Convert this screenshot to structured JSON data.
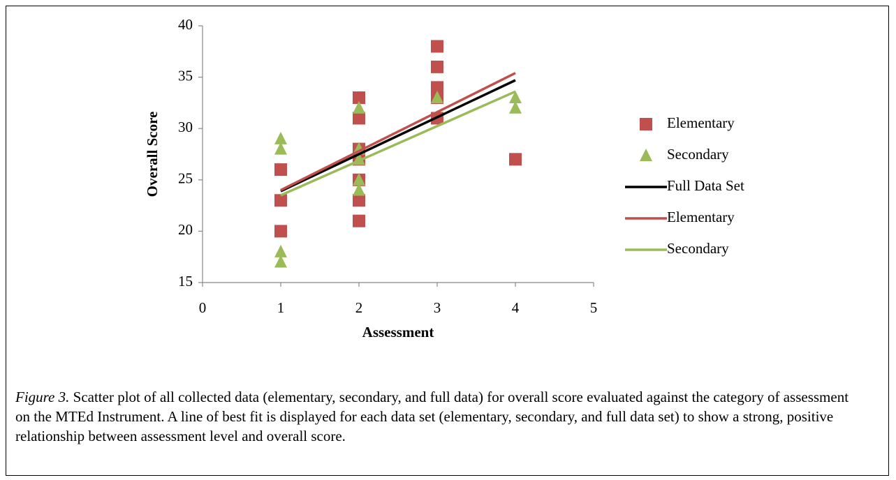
{
  "chart_data": {
    "type": "scatter",
    "x_label": "Assessment",
    "y_label": "Overall Score",
    "xlim": [
      0,
      5
    ],
    "xticks": [
      0,
      1,
      2,
      3,
      4,
      5
    ],
    "ylim": [
      15,
      40
    ],
    "yticks": [
      15,
      20,
      25,
      30,
      35,
      40
    ],
    "legend": "right",
    "series": [
      {
        "name": "Elementary",
        "type": "scatter",
        "marker": "square",
        "color": "#c0504d",
        "x": [
          1,
          1,
          1,
          2,
          2,
          2,
          2,
          2,
          2,
          2,
          3,
          3,
          3,
          3,
          3,
          4
        ],
        "values": [
          26,
          23,
          20,
          33,
          31,
          28,
          27,
          25,
          23,
          21,
          38,
          36,
          34,
          33,
          31,
          27
        ]
      },
      {
        "name": "Secondary",
        "type": "scatter",
        "marker": "triangle",
        "color": "#9bbb59",
        "x": [
          1,
          1,
          1,
          1,
          2,
          2,
          2,
          2,
          2,
          3,
          4,
          4
        ],
        "values": [
          29,
          28,
          18,
          17,
          32,
          28,
          27,
          25,
          24,
          33,
          33,
          32
        ]
      },
      {
        "name": "Full Data Set",
        "type": "line",
        "color": "#000000",
        "x": [
          1,
          4
        ],
        "values": [
          23.9,
          34.7
        ]
      },
      {
        "name": "Elementary",
        "type": "line",
        "color": "#c0504d",
        "x": [
          1,
          4
        ],
        "values": [
          24.0,
          35.4
        ]
      },
      {
        "name": "Secondary",
        "type": "line",
        "color": "#9bbb59",
        "x": [
          1,
          4
        ],
        "values": [
          23.5,
          33.6
        ]
      }
    ]
  },
  "caption": {
    "label": "Figure 3.",
    "text": " Scatter plot of all collected data (elementary, secondary, and full data) for overall score evaluated against the category of assessment on the MTEd Instrument. A line of best fit is displayed for each data set (elementary, secondary, and full data set) to show a strong, positive relationship between assessment level and overall score."
  }
}
